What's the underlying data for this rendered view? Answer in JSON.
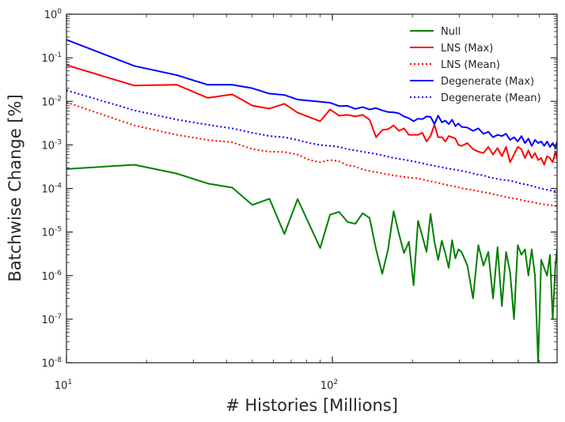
{
  "chart_data": {
    "type": "line",
    "xlabel": "# Histories [Millions]",
    "ylabel": "Batchwise Change [%]",
    "xscale": "log",
    "yscale": "log",
    "xlim": [
      10,
      700
    ],
    "ylim": [
      1e-08,
      1
    ],
    "grid": false,
    "legend_position": "top-right",
    "x_ticks": [
      {
        "value": 10,
        "base": "10",
        "exp": "1"
      },
      {
        "value": 100,
        "base": "10",
        "exp": "2"
      }
    ],
    "y_ticks": [
      {
        "value": 1e-08,
        "base": "10",
        "exp": "-8"
      },
      {
        "value": 1e-07,
        "base": "10",
        "exp": "-7"
      },
      {
        "value": 1e-06,
        "base": "10",
        "exp": "-6"
      },
      {
        "value": 1e-05,
        "base": "10",
        "exp": "-5"
      },
      {
        "value": 0.0001,
        "base": "10",
        "exp": "-4"
      },
      {
        "value": 0.001,
        "base": "10",
        "exp": "-3"
      },
      {
        "value": 0.01,
        "base": "10",
        "exp": "-2"
      },
      {
        "value": 0.1,
        "base": "10",
        "exp": "-1"
      },
      {
        "value": 1,
        "base": "10",
        "exp": "0"
      }
    ],
    "series": [
      {
        "name": "Null",
        "color": "#008000",
        "style": "solid",
        "x": [
          10,
          18,
          26,
          34,
          42,
          50,
          58,
          66,
          74,
          90,
          98,
          106,
          114,
          122,
          130,
          138,
          146,
          154,
          162,
          170,
          178,
          186,
          194,
          202,
          210,
          218,
          226,
          234,
          242,
          250,
          258,
          266,
          274,
          282,
          290,
          298,
          306,
          322,
          338,
          354,
          370,
          386,
          402,
          418,
          434,
          450,
          466,
          482,
          498,
          514,
          530,
          546,
          562,
          578,
          594,
          610,
          626,
          642,
          658,
          674,
          690,
          700
        ],
        "y": [
          0.00028,
          0.00035,
          0.00022,
          0.00013,
          0.000105,
          4.2e-05,
          5.8e-05,
          9e-06,
          5.7e-05,
          4.3e-06,
          2.5e-05,
          2.9e-05,
          1.7e-05,
          1.55e-05,
          2.7e-05,
          2.1e-05,
          4e-06,
          1.1e-06,
          4e-06,
          3e-05,
          9e-06,
          3.3e-06,
          6e-06,
          6e-07,
          1.8e-05,
          8e-06,
          3.5e-06,
          2.6e-05,
          6e-06,
          2.3e-06,
          6.3e-06,
          3.2e-06,
          1.5e-06,
          6.5e-06,
          2.5e-06,
          4e-06,
          3.5e-06,
          1.7e-06,
          3e-07,
          5e-06,
          1.7e-06,
          3.5e-06,
          3e-07,
          4.5e-06,
          2e-07,
          3.5e-06,
          1.2e-06,
          1e-07,
          5e-06,
          3e-06,
          4e-06,
          1e-06,
          4e-06,
          1e-06,
          1e-08,
          2.3e-06,
          1.5e-06,
          1e-06,
          3e-06,
          1e-07,
          1.8e-06,
          4e-06
        ]
      },
      {
        "name": "LNS (Max)",
        "color": "#ff0000",
        "style": "solid",
        "x": [
          10,
          18,
          26,
          34,
          42,
          50,
          58,
          66,
          74,
          90,
          98,
          106,
          114,
          122,
          130,
          138,
          146,
          154,
          162,
          170,
          178,
          186,
          194,
          202,
          210,
          218,
          226,
          234,
          242,
          250,
          258,
          266,
          274,
          282,
          290,
          298,
          306,
          322,
          338,
          354,
          370,
          386,
          402,
          418,
          434,
          450,
          466,
          482,
          498,
          514,
          530,
          546,
          562,
          578,
          594,
          610,
          626,
          642,
          658,
          674,
          690,
          700
        ],
        "y": [
          0.068,
          0.023,
          0.024,
          0.012,
          0.0145,
          0.008,
          0.0068,
          0.0088,
          0.0055,
          0.0035,
          0.0065,
          0.0047,
          0.0049,
          0.0045,
          0.0049,
          0.0038,
          0.0015,
          0.0022,
          0.0023,
          0.0028,
          0.0021,
          0.0024,
          0.0017,
          0.0017,
          0.0017,
          0.0019,
          0.0012,
          0.0016,
          0.0029,
          0.0015,
          0.0015,
          0.0012,
          0.0016,
          0.0015,
          0.0014,
          0.001,
          0.00095,
          0.0011,
          0.0008,
          0.0007,
          0.00065,
          0.0009,
          0.0006,
          0.00085,
          0.00055,
          0.0009,
          0.0004,
          0.0006,
          0.0009,
          0.0008,
          0.0005,
          0.00075,
          0.0005,
          0.00065,
          0.00045,
          0.0005,
          0.00035,
          0.00055,
          0.0005,
          0.0004,
          0.0007,
          0.0005
        ]
      },
      {
        "name": "LNS (Mean)",
        "color": "#ff0000",
        "style": "dotted",
        "x": [
          10,
          18,
          26,
          34,
          42,
          50,
          58,
          66,
          74,
          82,
          90,
          98,
          106,
          114,
          122,
          130,
          150,
          170,
          190,
          210,
          230,
          250,
          270,
          290,
          310,
          330,
          350,
          370,
          390,
          410,
          430,
          450,
          470,
          490,
          510,
          530,
          550,
          570,
          590,
          610,
          630,
          650,
          670,
          690,
          700
        ],
        "y": [
          0.0095,
          0.0028,
          0.0017,
          0.0013,
          0.00115,
          0.0008,
          0.0007,
          0.00069,
          0.0006,
          0.00045,
          0.0004,
          0.00045,
          0.00042,
          0.00034,
          0.00032,
          0.00027,
          0.00023,
          0.0002,
          0.00018,
          0.00017,
          0.00015,
          0.000135,
          0.00012,
          0.00011,
          0.0001,
          9.5e-05,
          8.8e-05,
          8.2e-05,
          7.8e-05,
          7.2e-05,
          6.8e-05,
          6.4e-05,
          6e-05,
          5.8e-05,
          5.5e-05,
          5.2e-05,
          5e-05,
          4.8e-05,
          4.6e-05,
          4.4e-05,
          4.3e-05,
          4.2e-05,
          4.1e-05,
          4e-05,
          3.9e-05
        ]
      },
      {
        "name": "Degenerate (Max)",
        "color": "#0000ff",
        "style": "solid",
        "x": [
          10,
          18,
          26,
          34,
          42,
          50,
          58,
          66,
          74,
          90,
          98,
          106,
          114,
          122,
          130,
          138,
          146,
          154,
          162,
          170,
          178,
          186,
          194,
          202,
          210,
          218,
          226,
          234,
          242,
          250,
          258,
          266,
          274,
          282,
          290,
          298,
          306,
          322,
          338,
          354,
          370,
          386,
          402,
          418,
          434,
          450,
          466,
          482,
          498,
          514,
          530,
          546,
          562,
          578,
          594,
          610,
          626,
          642,
          658,
          674,
          690,
          700
        ],
        "y": [
          0.26,
          0.065,
          0.04,
          0.024,
          0.024,
          0.02,
          0.015,
          0.014,
          0.011,
          0.0098,
          0.0093,
          0.0078,
          0.0079,
          0.0067,
          0.0074,
          0.0065,
          0.007,
          0.0062,
          0.0057,
          0.0056,
          0.0053,
          0.0045,
          0.0041,
          0.0035,
          0.004,
          0.0039,
          0.0045,
          0.0044,
          0.003,
          0.0047,
          0.0033,
          0.0036,
          0.003,
          0.0038,
          0.0027,
          0.0031,
          0.0026,
          0.0025,
          0.0021,
          0.0024,
          0.0018,
          0.002,
          0.0015,
          0.0017,
          0.0016,
          0.0018,
          0.0013,
          0.0015,
          0.0012,
          0.0016,
          0.0011,
          0.0014,
          0.00095,
          0.0013,
          0.0011,
          0.0012,
          0.00095,
          0.0012,
          0.0009,
          0.0011,
          0.00085,
          0.0012
        ]
      },
      {
        "name": "Degenerate (Mean)",
        "color": "#0000ff",
        "style": "dotted",
        "x": [
          10,
          18,
          26,
          34,
          42,
          50,
          58,
          66,
          74,
          82,
          90,
          98,
          106,
          114,
          122,
          130,
          150,
          170,
          190,
          210,
          230,
          250,
          270,
          290,
          310,
          330,
          350,
          370,
          390,
          410,
          430,
          450,
          470,
          490,
          510,
          530,
          550,
          570,
          590,
          610,
          630,
          650,
          670,
          690,
          700
        ],
        "y": [
          0.018,
          0.0062,
          0.0038,
          0.0029,
          0.0024,
          0.0019,
          0.0016,
          0.0015,
          0.0013,
          0.0011,
          0.001,
          0.00095,
          0.0009,
          0.0008,
          0.00075,
          0.0007,
          0.0006,
          0.0005,
          0.00045,
          0.0004,
          0.00035,
          0.00032,
          0.00029,
          0.00027,
          0.00025,
          0.00023,
          0.00021,
          0.0002,
          0.00018,
          0.00017,
          0.00016,
          0.000155,
          0.00015,
          0.00014,
          0.00013,
          0.000125,
          0.00012,
          0.000112,
          0.000105,
          0.0001,
          9.6e-05,
          9.2e-05,
          8.8e-05,
          8.4e-05,
          8e-05
        ]
      }
    ]
  }
}
